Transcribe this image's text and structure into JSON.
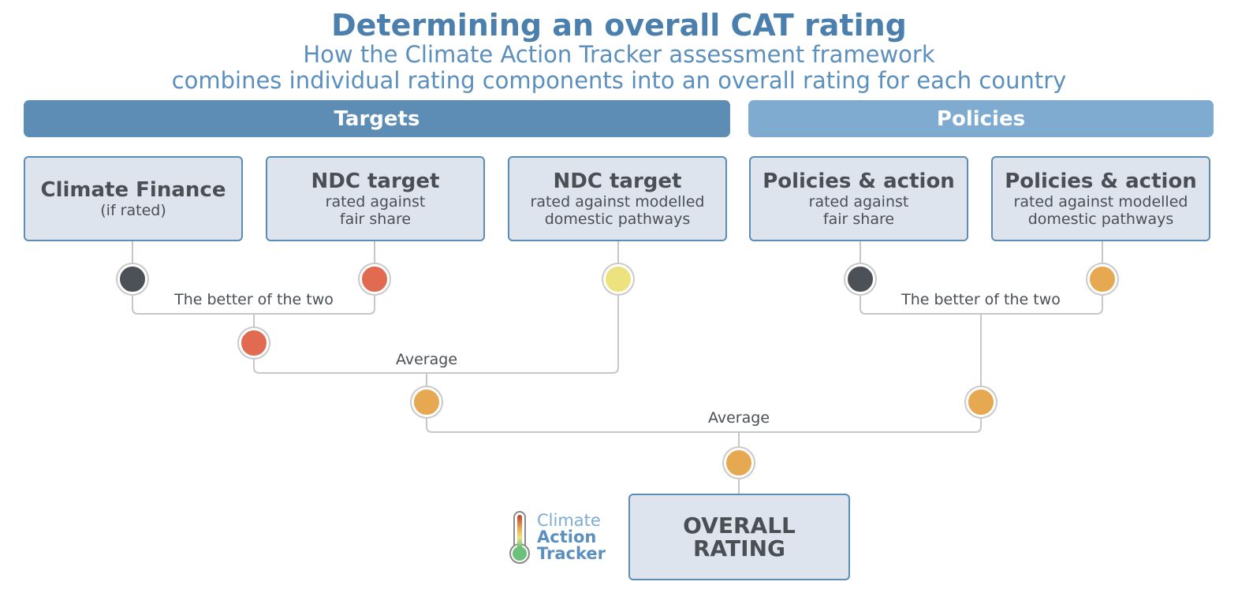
{
  "title": "Determining an overall CAT rating",
  "subtitle_line1": "How the Climate Action Tracker assessment framework",
  "subtitle_line2": "combines individual rating components into an overall rating for each country",
  "banners": {
    "targets": "Targets",
    "policies": "Policies"
  },
  "boxes": [
    {
      "title": "Climate Finance",
      "sub1": "(if rated)",
      "sub2": ""
    },
    {
      "title": "NDC target",
      "sub1": "rated against",
      "sub2": "fair share"
    },
    {
      "title": "NDC target",
      "sub1": "rated against modelled",
      "sub2": "domestic pathways"
    },
    {
      "title": "Policies & action",
      "sub1": "rated against",
      "sub2": "fair share"
    },
    {
      "title": "Policies & action",
      "sub1": "rated against modelled",
      "sub2": "domestic pathways"
    }
  ],
  "labels": {
    "better_left": "The better of the two",
    "better_right": "The better of the two",
    "average_left": "Average",
    "average_center": "Average"
  },
  "overall": {
    "line1": "OVERALL",
    "line2": "RATING"
  },
  "logo": {
    "line1": "Climate",
    "line2": "Action",
    "line3": "Tracker"
  },
  "colors": {
    "dark": "#4b5156",
    "red": "#e06b50",
    "yellow": "#ede37e",
    "orange": "#e6a951"
  }
}
